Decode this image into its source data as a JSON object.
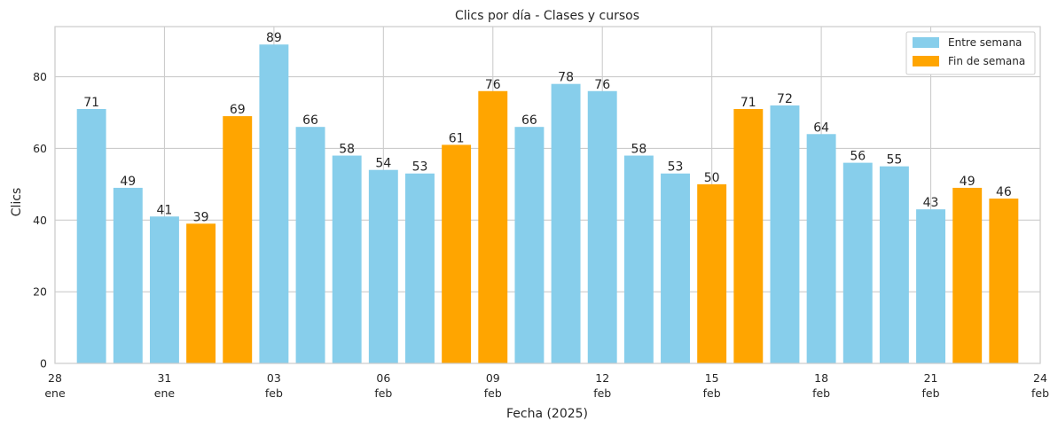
{
  "chart_data": {
    "type": "bar",
    "title": "Clics por día - Clases y cursos",
    "xlabel": "Fecha (2025)",
    "ylabel": "Clics",
    "ylim": [
      0,
      94
    ],
    "y_ticks": [
      0,
      20,
      40,
      60,
      80
    ],
    "xlim": [
      "2025-01-28",
      "2025-02-24"
    ],
    "x_ticks": [
      {
        "date": "2025-01-28",
        "day": "28",
        "month": "ene"
      },
      {
        "date": "2025-01-31",
        "day": "31",
        "month": "ene"
      },
      {
        "date": "2025-02-03",
        "day": "03",
        "month": "feb"
      },
      {
        "date": "2025-02-06",
        "day": "06",
        "month": "feb"
      },
      {
        "date": "2025-02-09",
        "day": "09",
        "month": "feb"
      },
      {
        "date": "2025-02-12",
        "day": "12",
        "month": "feb"
      },
      {
        "date": "2025-02-15",
        "day": "15",
        "month": "feb"
      },
      {
        "date": "2025-02-18",
        "day": "18",
        "month": "feb"
      },
      {
        "date": "2025-02-21",
        "day": "21",
        "month": "feb"
      },
      {
        "date": "2025-02-24",
        "day": "24",
        "month": "feb"
      }
    ],
    "grid": true,
    "legend_position": "top-right",
    "series": [
      {
        "name": "Entre semana",
        "color": "#87ceeb"
      },
      {
        "name": "Fin de semana",
        "color": "#ffa500"
      }
    ],
    "bars": [
      {
        "date": "2025-01-29",
        "value": 71,
        "series": "Entre semana"
      },
      {
        "date": "2025-01-30",
        "value": 49,
        "series": "Entre semana"
      },
      {
        "date": "2025-01-31",
        "value": 41,
        "series": "Entre semana"
      },
      {
        "date": "2025-02-01",
        "value": 39,
        "series": "Fin de semana"
      },
      {
        "date": "2025-02-02",
        "value": 69,
        "series": "Fin de semana"
      },
      {
        "date": "2025-02-03",
        "value": 89,
        "series": "Entre semana"
      },
      {
        "date": "2025-02-04",
        "value": 66,
        "series": "Entre semana"
      },
      {
        "date": "2025-02-05",
        "value": 58,
        "series": "Entre semana"
      },
      {
        "date": "2025-02-06",
        "value": 54,
        "series": "Entre semana"
      },
      {
        "date": "2025-02-07",
        "value": 53,
        "series": "Entre semana"
      },
      {
        "date": "2025-02-08",
        "value": 61,
        "series": "Fin de semana"
      },
      {
        "date": "2025-02-09",
        "value": 76,
        "series": "Fin de semana"
      },
      {
        "date": "2025-02-10",
        "value": 66,
        "series": "Entre semana"
      },
      {
        "date": "2025-02-11",
        "value": 78,
        "series": "Entre semana"
      },
      {
        "date": "2025-02-12",
        "value": 76,
        "series": "Entre semana"
      },
      {
        "date": "2025-02-13",
        "value": 58,
        "series": "Entre semana"
      },
      {
        "date": "2025-02-14",
        "value": 53,
        "series": "Entre semana"
      },
      {
        "date": "2025-02-15",
        "value": 50,
        "series": "Fin de semana"
      },
      {
        "date": "2025-02-16",
        "value": 71,
        "series": "Fin de semana"
      },
      {
        "date": "2025-02-17",
        "value": 72,
        "series": "Entre semana"
      },
      {
        "date": "2025-02-18",
        "value": 64,
        "series": "Entre semana"
      },
      {
        "date": "2025-02-19",
        "value": 56,
        "series": "Entre semana"
      },
      {
        "date": "2025-02-20",
        "value": 55,
        "series": "Entre semana"
      },
      {
        "date": "2025-02-21",
        "value": 43,
        "series": "Entre semana"
      },
      {
        "date": "2025-02-22",
        "value": 49,
        "series": "Fin de semana"
      },
      {
        "date": "2025-02-23",
        "value": 46,
        "series": "Fin de semana"
      }
    ]
  }
}
